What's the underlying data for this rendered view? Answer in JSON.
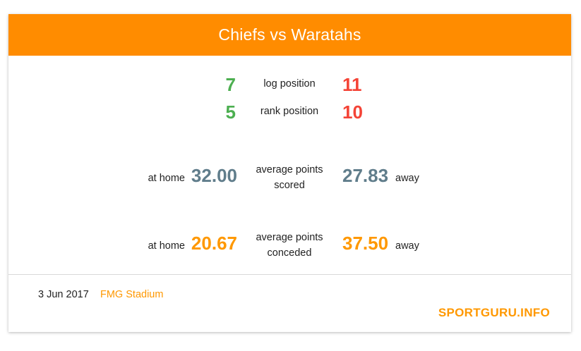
{
  "header": {
    "title": "Chiefs vs Waratahs",
    "bg_color": "#ff8c00"
  },
  "rankings": [
    {
      "label": "log position",
      "home": "7",
      "away": "11"
    },
    {
      "label": "rank position",
      "home": "5",
      "away": "10"
    }
  ],
  "scored": {
    "home_label": "at home",
    "home_value": "32.00",
    "label_line1": "average points",
    "label_line2": "scored",
    "away_value": "27.83",
    "away_label": "away"
  },
  "conceded": {
    "home_label": "at home",
    "home_value": "20.67",
    "label_line1": "average points",
    "label_line2": "conceded",
    "away_value": "37.50",
    "away_label": "away"
  },
  "footer": {
    "date": "3 Jun 2017",
    "venue": "FMG Stadium",
    "brand": "SPORTGURU.INFO"
  },
  "colors": {
    "good": "#4caf50",
    "bad": "#f44336",
    "scored": "#607d8b",
    "conceded": "#ff9800"
  }
}
